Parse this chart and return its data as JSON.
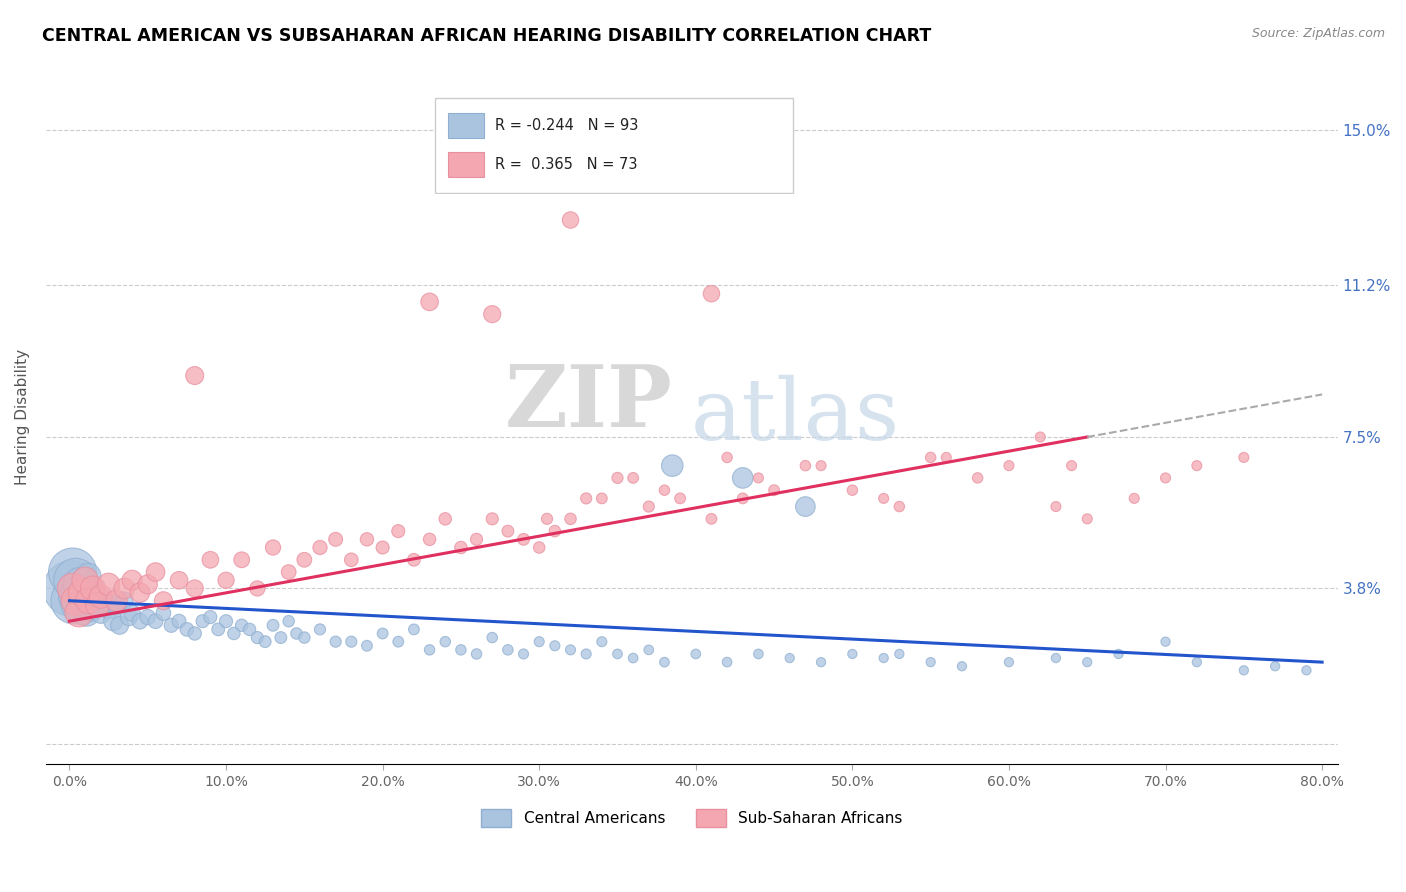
{
  "title": "CENTRAL AMERICAN VS SUBSAHARAN AFRICAN HEARING DISABILITY CORRELATION CHART",
  "source": "Source: ZipAtlas.com",
  "ylabel": "Hearing Disability",
  "xlim": [
    -1.5,
    81.0
  ],
  "ylim": [
    -0.5,
    16.5
  ],
  "ytick_vals": [
    0.0,
    3.8,
    7.5,
    11.2,
    15.0
  ],
  "ytick_labels": [
    "",
    "3.8%",
    "7.5%",
    "11.2%",
    "15.0%"
  ],
  "xtick_vals": [
    0.0,
    10.0,
    20.0,
    30.0,
    40.0,
    50.0,
    60.0,
    70.0,
    80.0
  ],
  "xtick_labels": [
    "0.0%",
    "10.0%",
    "20.0%",
    "30.0%",
    "40.0%",
    "50.0%",
    "60.0%",
    "70.0%",
    "80.0%"
  ],
  "blue_color": "#aac4e0",
  "pink_color": "#f4a7b0",
  "blue_edge": "#90afd0",
  "pink_edge": "#e890a0",
  "blue_line_color": "#2255cc",
  "pink_line_color": "#e03060",
  "blue_R": -0.244,
  "blue_N": 93,
  "pink_R": 0.365,
  "pink_N": 73,
  "legend_label_blue": "Central Americans",
  "legend_label_pink": "Sub-Saharan Africans",
  "watermark_zip": "ZIP",
  "watermark_atlas": "atlas",
  "blue_trend_x": [
    0.0,
    80.0
  ],
  "blue_trend_y": [
    3.5,
    2.0
  ],
  "pink_trend_x": [
    0.0,
    65.0
  ],
  "pink_trend_y": [
    3.0,
    7.5
  ],
  "blue_scatter_x": [
    0.1,
    0.2,
    0.3,
    0.4,
    0.5,
    0.6,
    0.7,
    0.8,
    0.9,
    1.0,
    1.1,
    1.2,
    1.3,
    1.4,
    1.5,
    1.6,
    1.8,
    2.0,
    2.2,
    2.5,
    2.8,
    3.0,
    3.2,
    3.5,
    3.8,
    4.0,
    4.5,
    5.0,
    5.5,
    6.0,
    6.5,
    7.0,
    7.5,
    8.0,
    8.5,
    9.0,
    9.5,
    10.0,
    10.5,
    11.0,
    11.5,
    12.0,
    12.5,
    13.0,
    13.5,
    14.0,
    14.5,
    15.0,
    16.0,
    17.0,
    18.0,
    19.0,
    20.0,
    21.0,
    22.0,
    23.0,
    24.0,
    25.0,
    26.0,
    27.0,
    28.0,
    29.0,
    30.0,
    32.0,
    33.0,
    34.0,
    35.0,
    37.0,
    38.0,
    40.0,
    42.0,
    44.0,
    46.0,
    48.0,
    50.0,
    52.0,
    55.0,
    57.0,
    60.0,
    63.0,
    65.0,
    67.0,
    70.0,
    72.0,
    75.0,
    77.0,
    79.0,
    38.5,
    43.0,
    47.0,
    31.0,
    36.0,
    53.0
  ],
  "blue_scatter_y": [
    3.8,
    4.2,
    3.5,
    4.0,
    3.6,
    3.4,
    3.9,
    3.3,
    3.7,
    3.5,
    3.2,
    4.1,
    3.6,
    3.3,
    3.8,
    3.5,
    3.4,
    3.2,
    3.5,
    3.3,
    3.0,
    3.4,
    2.9,
    3.5,
    3.1,
    3.2,
    3.0,
    3.1,
    3.0,
    3.2,
    2.9,
    3.0,
    2.8,
    2.7,
    3.0,
    3.1,
    2.8,
    3.0,
    2.7,
    2.9,
    2.8,
    2.6,
    2.5,
    2.9,
    2.6,
    3.0,
    2.7,
    2.6,
    2.8,
    2.5,
    2.5,
    2.4,
    2.7,
    2.5,
    2.8,
    2.3,
    2.5,
    2.3,
    2.2,
    2.6,
    2.3,
    2.2,
    2.5,
    2.3,
    2.2,
    2.5,
    2.2,
    2.3,
    2.0,
    2.2,
    2.0,
    2.2,
    2.1,
    2.0,
    2.2,
    2.1,
    2.0,
    1.9,
    2.0,
    2.1,
    2.0,
    2.2,
    2.5,
    2.0,
    1.8,
    1.9,
    1.8,
    6.8,
    6.5,
    5.8,
    2.4,
    2.1,
    2.2
  ],
  "blue_scatter_sizes": [
    400,
    300,
    280,
    250,
    180,
    160,
    150,
    130,
    120,
    100,
    90,
    85,
    80,
    75,
    70,
    65,
    60,
    55,
    55,
    50,
    48,
    45,
    42,
    40,
    38,
    35,
    32,
    30,
    28,
    28,
    26,
    25,
    24,
    23,
    22,
    22,
    21,
    22,
    20,
    20,
    20,
    19,
    18,
    18,
    18,
    17,
    17,
    17,
    16,
    16,
    16,
    15,
    15,
    15,
    15,
    14,
    14,
    14,
    14,
    14,
    14,
    13,
    13,
    13,
    13,
    13,
    12,
    12,
    12,
    12,
    12,
    12,
    11,
    11,
    11,
    11,
    11,
    11,
    11,
    11,
    11,
    11,
    11,
    11,
    11,
    11,
    11,
    60,
    55,
    50,
    13,
    12,
    11
  ],
  "pink_scatter_x": [
    0.2,
    0.4,
    0.6,
    0.8,
    1.0,
    1.2,
    1.5,
    1.8,
    2.0,
    2.5,
    3.0,
    3.5,
    4.0,
    4.5,
    5.0,
    5.5,
    6.0,
    7.0,
    8.0,
    9.0,
    10.0,
    11.0,
    12.0,
    13.0,
    14.0,
    15.0,
    16.0,
    17.0,
    18.0,
    19.0,
    20.0,
    21.0,
    22.0,
    23.0,
    24.0,
    25.0,
    26.0,
    27.0,
    28.0,
    29.0,
    30.0,
    31.0,
    32.0,
    33.0,
    35.0,
    37.0,
    39.0,
    41.0,
    43.0,
    45.0,
    47.0,
    50.0,
    53.0,
    55.0,
    58.0,
    60.0,
    62.0,
    64.0,
    30.5,
    34.0,
    36.0,
    38.0,
    42.0,
    44.0,
    48.0,
    52.0,
    56.0,
    63.0,
    65.0,
    68.0,
    70.0,
    72.0,
    75.0
  ],
  "pink_scatter_y": [
    3.8,
    3.5,
    3.2,
    3.7,
    4.0,
    3.5,
    3.8,
    3.4,
    3.6,
    3.9,
    3.5,
    3.8,
    4.0,
    3.7,
    3.9,
    4.2,
    3.5,
    4.0,
    3.8,
    4.5,
    4.0,
    4.5,
    3.8,
    4.8,
    4.2,
    4.5,
    4.8,
    5.0,
    4.5,
    5.0,
    4.8,
    5.2,
    4.5,
    5.0,
    5.5,
    4.8,
    5.0,
    5.5,
    5.2,
    5.0,
    4.8,
    5.2,
    5.5,
    6.0,
    6.5,
    5.8,
    6.0,
    5.5,
    6.0,
    6.2,
    6.8,
    6.2,
    5.8,
    7.0,
    6.5,
    6.8,
    7.5,
    6.8,
    5.5,
    6.0,
    6.5,
    6.2,
    7.0,
    6.5,
    6.8,
    6.0,
    7.0,
    5.8,
    5.5,
    6.0,
    6.5,
    6.8,
    7.0
  ],
  "pink_scatter_sizes": [
    120,
    110,
    100,
    95,
    90,
    85,
    80,
    75,
    70,
    65,
    60,
    55,
    52,
    50,
    48,
    45,
    42,
    40,
    38,
    36,
    34,
    32,
    30,
    30,
    28,
    28,
    26,
    25,
    24,
    23,
    22,
    22,
    21,
    20,
    20,
    20,
    19,
    19,
    18,
    18,
    17,
    17,
    17,
    16,
    16,
    16,
    15,
    15,
    15,
    15,
    14,
    14,
    14,
    14,
    14,
    13,
    13,
    13,
    16,
    15,
    15,
    14,
    14,
    13,
    13,
    13,
    13,
    13,
    13,
    13,
    13,
    13,
    13
  ],
  "pink_outliers_x": [
    32.0,
    23.0,
    27.0,
    41.0,
    8.0
  ],
  "pink_outliers_y": [
    12.8,
    10.8,
    10.5,
    11.0,
    9.0
  ],
  "pink_outliers_sizes": [
    35,
    40,
    38,
    35,
    42
  ]
}
